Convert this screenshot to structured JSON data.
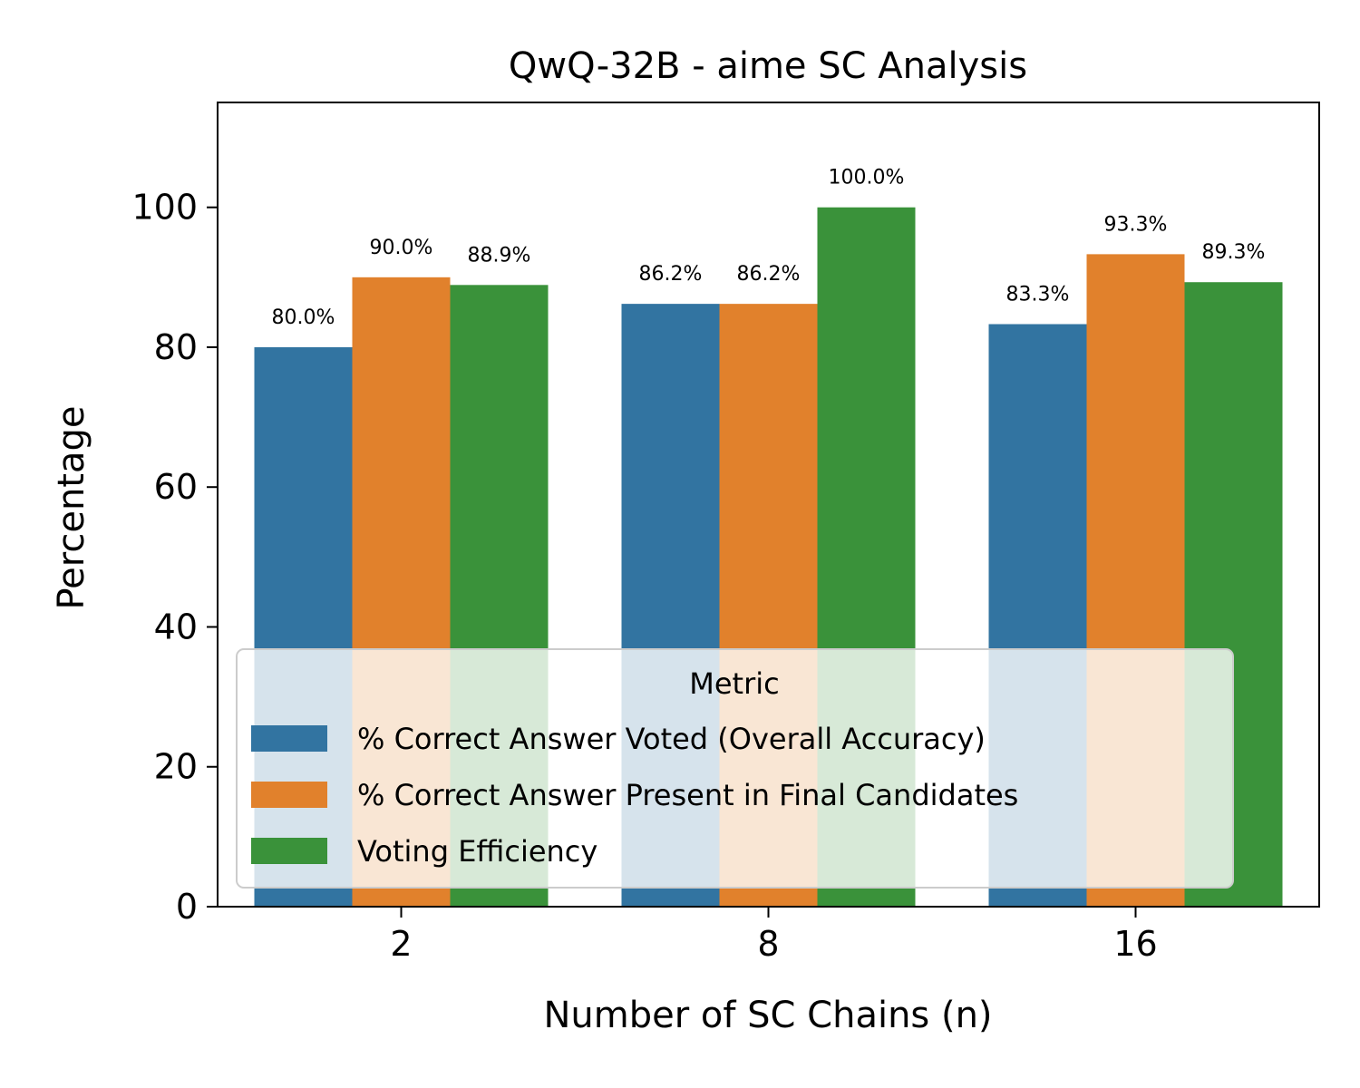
{
  "chart_data": {
    "type": "bar",
    "title": "QwQ-32B - aime SC Analysis",
    "xlabel": "Number of SC Chains (n)",
    "ylabel": "Percentage",
    "categories": [
      "2",
      "8",
      "16"
    ],
    "ylim": [
      0,
      115
    ],
    "yticks": [
      0,
      20,
      40,
      60,
      80,
      100
    ],
    "series": [
      {
        "name": "% Correct Answer Voted (Overall Accuracy)",
        "color": "#3274a1",
        "values": [
          80.0,
          86.2,
          83.3
        ],
        "labels": [
          "80.0%",
          "86.2%",
          "83.3%"
        ]
      },
      {
        "name": "% Correct Answer Present in Final Candidates",
        "color": "#e1812c",
        "values": [
          90.0,
          86.2,
          93.3
        ],
        "labels": [
          "90.0%",
          "86.2%",
          "93.3%"
        ]
      },
      {
        "name": "Voting Efficiency",
        "color": "#3a923a",
        "values": [
          88.9,
          100.0,
          89.3
        ],
        "labels": [
          "88.9%",
          "100.0%",
          "89.3%"
        ]
      }
    ],
    "legend": {
      "title": "Metric",
      "placement": "lower center"
    },
    "grid": false
  }
}
